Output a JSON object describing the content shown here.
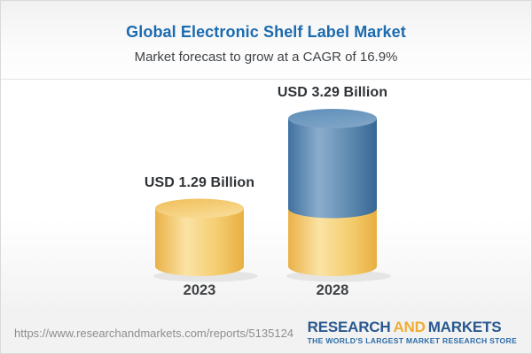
{
  "header": {
    "title": "Global Electronic Shelf Label Market",
    "subtitle": "Market forecast to grow at a CAGR of 16.9%",
    "title_color": "#1B6BAF"
  },
  "chart_data": {
    "type": "bar",
    "subtype": "3d-cylinder",
    "title": "Global Electronic Shelf Label Market",
    "subtitle": "Market forecast to grow at a CAGR of 16.9%",
    "cagr_percent": 16.9,
    "unit": "USD Billion",
    "categories": [
      "2023",
      "2028"
    ],
    "values": [
      1.29,
      3.29
    ],
    "value_labels": [
      "USD 1.29 Billion",
      "USD 3.29 Billion"
    ],
    "stacking_note": "2028 cylinder shows base equal to 2023 value in yellow with growth increment in blue",
    "ylim": [
      0,
      3.29
    ],
    "grid": "off",
    "legend": "none",
    "colors": {
      "base_segment": "#F0BE55",
      "growth_segment": "#4C7EAC"
    },
    "style": {
      "yellow_body": [
        "#EAB148",
        "#FBE3A4",
        "#F4CD6F",
        "#E8AF41"
      ],
      "yellow_top": [
        "#EFBE58",
        "#F9DA93"
      ],
      "blue_body": [
        "#40719F",
        "#8BADCC",
        "#5D89AF",
        "#366795"
      ],
      "blue_top": [
        "#5E8EBA",
        "#7EA4C6"
      ]
    }
  },
  "footer": {
    "url": "https://www.researchandmarkets.com/reports/5135124",
    "logo": {
      "part1": "RESEARCH",
      "part2": "AND",
      "part3": "MARKETS",
      "tagline": "THE WORLD'S LARGEST MARKET RESEARCH STORE",
      "blue": "#28588F",
      "gold": "#EFAC33"
    }
  }
}
